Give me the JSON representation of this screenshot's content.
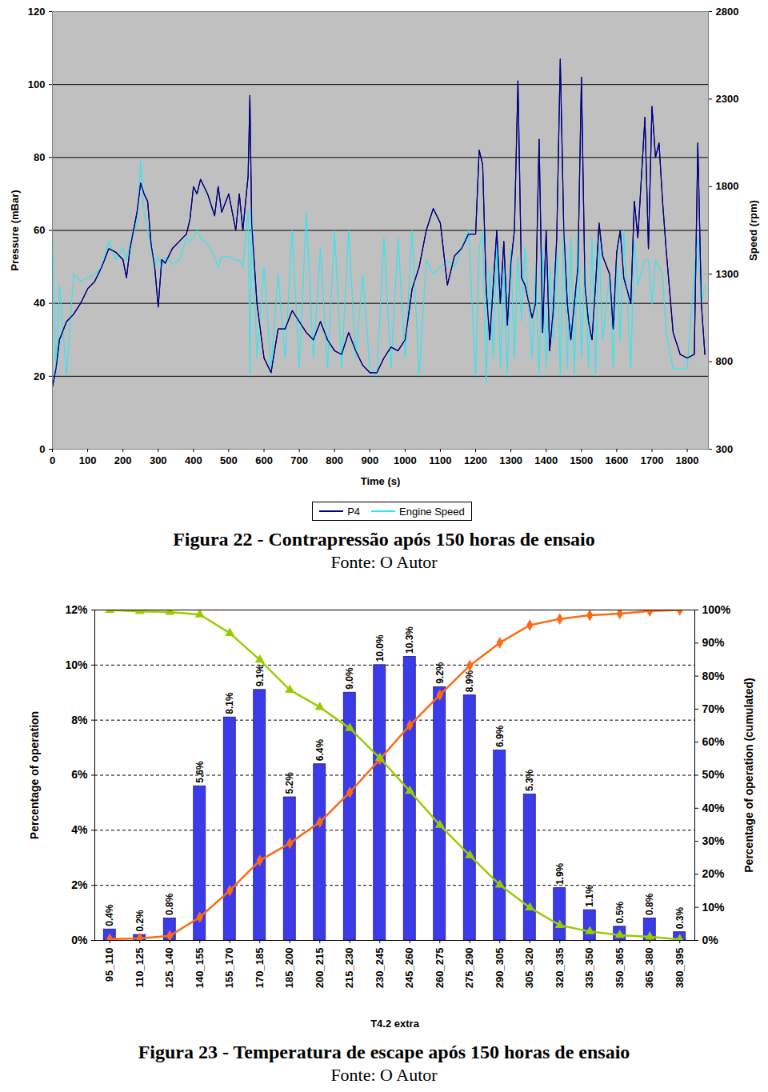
{
  "chart_data": [
    {
      "type": "line",
      "title": "Figura 22 - Contrapressão após 150 horas de ensaio",
      "subtitle": "Fonte: O Autor",
      "xlabel": "Time (s)",
      "ylabel": "Pressure (mBar)",
      "y2label": "Speed (rpm)",
      "xlim": [
        0,
        1860
      ],
      "xticks": [
        0,
        100,
        200,
        300,
        400,
        500,
        600,
        700,
        800,
        900,
        1000,
        1100,
        1200,
        1300,
        1400,
        1500,
        1600,
        1700,
        1800
      ],
      "ylim": [
        0,
        120
      ],
      "yticks": [
        0,
        20,
        40,
        60,
        80,
        100,
        120
      ],
      "y2lim": [
        300,
        2800
      ],
      "y2ticks": [
        300,
        800,
        1300,
        1800,
        2300,
        2800
      ],
      "grid": true,
      "legend": "bottom",
      "x": [
        0,
        10,
        20,
        40,
        60,
        80,
        100,
        120,
        140,
        160,
        180,
        200,
        210,
        220,
        240,
        250,
        260,
        270,
        280,
        290,
        300,
        310,
        320,
        340,
        360,
        380,
        390,
        400,
        410,
        420,
        440,
        460,
        470,
        480,
        500,
        520,
        530,
        540,
        555,
        560,
        565,
        580,
        600,
        620,
        640,
        660,
        680,
        700,
        720,
        740,
        760,
        780,
        800,
        820,
        840,
        860,
        880,
        900,
        920,
        940,
        960,
        980,
        1000,
        1020,
        1040,
        1060,
        1080,
        1100,
        1120,
        1140,
        1160,
        1180,
        1200,
        1210,
        1220,
        1230,
        1240,
        1250,
        1260,
        1270,
        1280,
        1290,
        1300,
        1310,
        1320,
        1330,
        1340,
        1360,
        1370,
        1380,
        1390,
        1400,
        1410,
        1420,
        1430,
        1440,
        1450,
        1460,
        1470,
        1480,
        1490,
        1500,
        1510,
        1520,
        1530,
        1540,
        1550,
        1560,
        1580,
        1590,
        1600,
        1610,
        1620,
        1640,
        1650,
        1660,
        1680,
        1690,
        1700,
        1710,
        1720,
        1730,
        1740,
        1760,
        1780,
        1800,
        1820,
        1830,
        1840,
        1850
      ],
      "series": [
        {
          "name": "P4",
          "color": "#000080",
          "values": [
            17,
            22,
            30,
            35,
            37,
            40,
            44,
            46,
            50,
            55,
            54,
            52,
            47,
            55,
            65,
            73,
            70,
            68,
            56,
            50,
            39,
            52,
            51,
            55,
            57,
            59,
            63,
            72,
            70,
            74,
            70,
            64,
            72,
            65,
            70,
            60,
            70,
            60,
            75,
            97,
            62,
            40,
            25,
            21,
            33,
            33,
            38,
            35,
            32,
            30,
            35,
            30,
            27,
            26,
            32,
            27,
            23,
            21,
            21,
            25,
            28,
            27,
            30,
            44,
            50,
            60,
            66,
            62,
            45,
            53,
            55,
            59,
            59,
            82,
            78,
            44,
            30,
            45,
            60,
            40,
            57,
            34,
            51,
            60,
            101,
            47,
            45,
            36,
            40,
            85,
            32,
            60,
            27,
            38,
            58,
            107,
            60,
            40,
            30,
            40,
            50,
            102,
            45,
            35,
            30,
            45,
            62,
            53,
            48,
            33,
            54,
            60,
            47,
            40,
            68,
            58,
            91,
            55,
            94,
            80,
            84,
            68,
            55,
            32,
            26,
            25,
            26,
            84,
            40,
            26
          ]
        },
        {
          "name": "Engine Speed",
          "color": "#33e6f0",
          "axis": "y2",
          "values": [
            1550,
            720,
            1240,
            720,
            1300,
            1260,
            1280,
            1300,
            1340,
            1490,
            1380,
            1450,
            1380,
            1470,
            1590,
            1950,
            1650,
            1550,
            1450,
            1340,
            1400,
            1340,
            1400,
            1360,
            1380,
            1510,
            1490,
            1510,
            1550,
            1510,
            1470,
            1400,
            1340,
            1400,
            1400,
            1380,
            1380,
            1340,
            1670,
            720,
            1670,
            820,
            1340,
            760,
            1300,
            820,
            1550,
            760,
            1650,
            820,
            1450,
            760,
            1550,
            760,
            1550,
            820,
            1300,
            760,
            720,
            1510,
            760,
            1510,
            820,
            1550,
            720,
            1380,
            1300,
            1340,
            1380,
            1340,
            1450,
            1550,
            720,
            1450,
            1550,
            680,
            1340,
            820,
            1470,
            760,
            1340,
            720,
            1450,
            820,
            1400,
            1030,
            1450,
            820,
            1340,
            720,
            1450,
            760,
            1340,
            920,
            1450,
            720,
            1590,
            760,
            1510,
            720,
            1550,
            820,
            1380,
            760,
            1510,
            720,
            1490,
            920,
            1300,
            760,
            1380,
            920,
            1550,
            760,
            1490,
            1240,
            1380,
            1380,
            1130,
            1380,
            1340,
            1300,
            970,
            760,
            760,
            760,
            1340,
            1510,
            1130,
            1240
          ]
        }
      ]
    },
    {
      "type": "bar",
      "title": "Figura 23 - Temperatura de escape após 150 horas de ensaio",
      "subtitle": "Fonte: O Autor",
      "xlabel": "T4.2 extra",
      "ylabel": "Percentage of operation",
      "y2label": "Percentage of operation (cumulated)",
      "categories": [
        "95_110",
        "110_125",
        "125_140",
        "140_155",
        "155_170",
        "170_185",
        "185_200",
        "200_215",
        "215_230",
        "230_245",
        "245_260",
        "260_275",
        "275_290",
        "290_305",
        "305_320",
        "320_335",
        "335_350",
        "350_365",
        "365_380",
        "380_395"
      ],
      "ylim": [
        0,
        12
      ],
      "yticks": [
        {
          "value": 0,
          "label": "0%"
        },
        {
          "value": 2,
          "label": "2%"
        },
        {
          "value": 4,
          "label": "4%"
        },
        {
          "value": 6,
          "label": "6%"
        },
        {
          "value": 8,
          "label": "8%"
        },
        {
          "value": 10,
          "label": "10%"
        },
        {
          "value": 12,
          "label": "12%"
        }
      ],
      "y2lim": [
        0,
        100
      ],
      "y2ticks": [
        {
          "value": 0,
          "label": "0%"
        },
        {
          "value": 10,
          "label": "10%"
        },
        {
          "value": 20,
          "label": "20%"
        },
        {
          "value": 30,
          "label": "30%"
        },
        {
          "value": 40,
          "label": "40%"
        },
        {
          "value": 50,
          "label": "50%"
        },
        {
          "value": 60,
          "label": "60%"
        },
        {
          "value": 70,
          "label": "70%"
        },
        {
          "value": 80,
          "label": "80%"
        },
        {
          "value": 90,
          "label": "90%"
        },
        {
          "value": 100,
          "label": "100%"
        }
      ],
      "grid": true,
      "series": [
        {
          "type": "bar",
          "color": "#3b3bea",
          "data_labels": true,
          "values": [
            0.4,
            0.2,
            0.8,
            5.6,
            8.1,
            9.1,
            5.2,
            6.4,
            9.0,
            10.0,
            10.3,
            9.2,
            8.9,
            6.9,
            5.3,
            1.9,
            1.1,
            0.5,
            0.8,
            0.3
          ],
          "value_labels": [
            "0.4%",
            "0.2%",
            "0.8%",
            "5.6%",
            "8.1%",
            "9.1%",
            "5.2%",
            "6.4%",
            "9.0%",
            "10.0%",
            "10.3%",
            "9.2%",
            "8.9%",
            "6.9%",
            "5.3%",
            "1.9%",
            "1.1%",
            "0.5%",
            "0.8%",
            "0.3%"
          ]
        },
        {
          "type": "line",
          "axis": "y2",
          "color": "#ff6a13",
          "marker": "diamond",
          "values": [
            0.4,
            0.6,
            1.4,
            7,
            15.1,
            24.2,
            29.4,
            35.8,
            44.8,
            54.8,
            65.1,
            74.3,
            83.2,
            90.1,
            95.4,
            97.3,
            98.4,
            98.9,
            99.7,
            100
          ]
        },
        {
          "type": "line",
          "axis": "y2",
          "color": "#99cc00",
          "marker": "triangle",
          "values": [
            100,
            99.6,
            99.4,
            98.6,
            93,
            84.9,
            75.8,
            70.6,
            64.2,
            55.2,
            45.2,
            34.9,
            25.7,
            16.8,
            9.9,
            4.6,
            2.7,
            1.6,
            1.1,
            0.3
          ]
        }
      ]
    }
  ]
}
